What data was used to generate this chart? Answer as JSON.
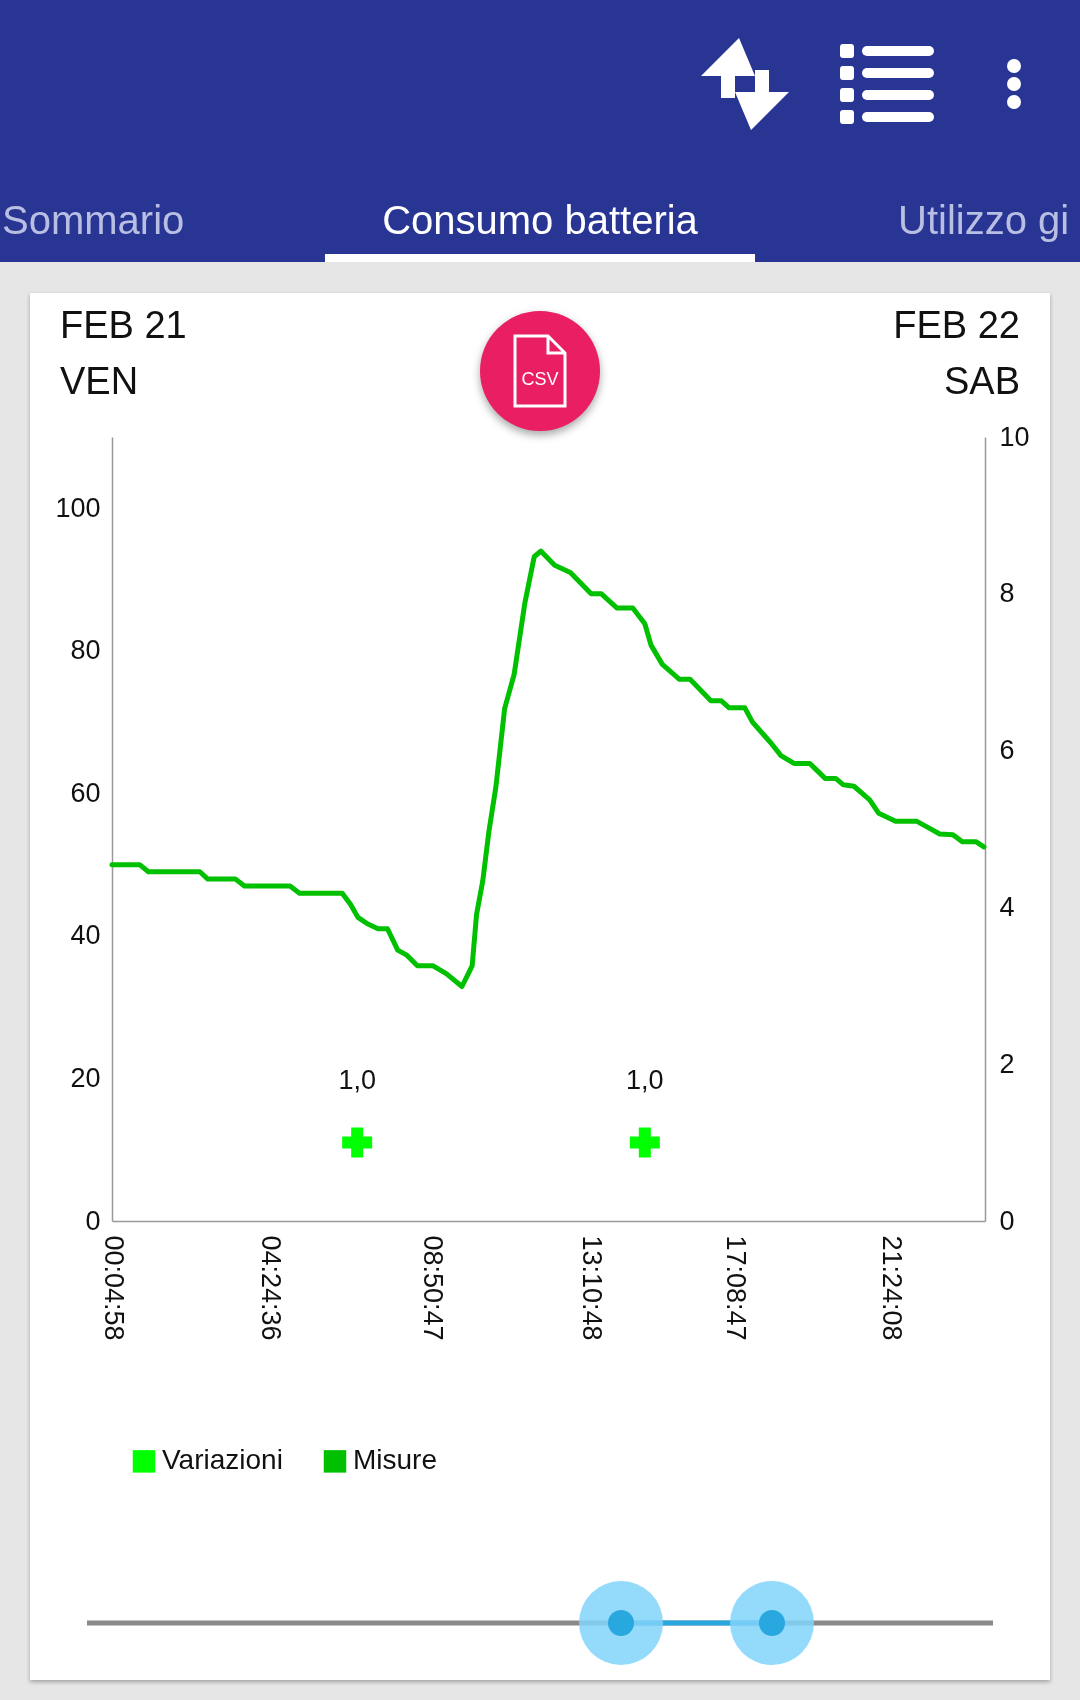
{
  "chart_data": {
    "type": "line",
    "title": "Consumo batteria",
    "annotations": [
      "FEB 21",
      "VEN",
      "FEB 22",
      "SAB",
      "Sommario",
      "Utilizzo gi",
      "CSV"
    ],
    "xlim": [
      0.0828,
      24.0
    ],
    "xticks": [
      {
        "value": 0.0828,
        "label": "00:04:58"
      },
      {
        "value": 4.41,
        "label": "04:24:36"
      },
      {
        "value": 8.8464,
        "label": "08:50:47"
      },
      {
        "value": 13.18,
        "label": "13:10:48"
      },
      {
        "value": 17.1464,
        "label": "17:08:47"
      },
      {
        "value": 21.4022,
        "label": "21:24:08"
      }
    ],
    "ylim": [
      0,
      110
    ],
    "yticks": [
      0,
      20,
      40,
      60,
      80,
      100
    ],
    "y2lim": [
      0,
      10
    ],
    "y2ticks": [
      0,
      2,
      4,
      6,
      8,
      10
    ],
    "grid": false,
    "legend": "bottom left",
    "series": [
      {
        "name": "Variazioni",
        "type": "scatter",
        "axis": "y2",
        "color": "#00ff00",
        "marker": "cross",
        "x": [
          6.8,
          14.68
        ],
        "values": [
          1.0,
          1.0
        ],
        "value_labels": [
          "1,0",
          "1,0"
        ]
      },
      {
        "name": "Misure",
        "type": "line",
        "color": "#00c000",
        "marker": "none",
        "line_style": "solid",
        "x": [
          0.0828,
          0.84,
          1.08,
          2.49,
          2.7,
          3.46,
          3.71,
          4.96,
          5.22,
          6.39,
          6.62,
          6.82,
          7.08,
          7.37,
          7.63,
          7.91,
          8.16,
          8.45,
          8.88,
          9.24,
          9.67,
          9.95,
          10.07,
          10.24,
          10.41,
          10.6,
          10.84,
          11.1,
          11.39,
          11.65,
          11.83,
          12.21,
          12.64,
          13.21,
          13.49,
          13.92,
          14.35,
          14.68,
          14.85,
          15.16,
          15.63,
          15.92,
          16.49,
          16.77,
          16.99,
          17.42,
          17.63,
          18.13,
          18.41,
          18.77,
          19.2,
          19.62,
          19.91,
          20.12,
          20.41,
          20.84,
          21.09,
          21.55,
          22.12,
          22.41,
          22.76,
          23.12,
          23.38,
          23.76,
          23.97
        ],
        "values": [
          50,
          50,
          49,
          49,
          48,
          48,
          47,
          47,
          46,
          46,
          44.4,
          42.6,
          41.7,
          41,
          41,
          38,
          37.3,
          35.8,
          35.8,
          34.7,
          32.9,
          35.8,
          43,
          47.7,
          54.7,
          60.9,
          71.9,
          76.7,
          86.6,
          93.2,
          94,
          92,
          91,
          88,
          88,
          86,
          86,
          83.8,
          80.8,
          78.1,
          76,
          76,
          73,
          73,
          72,
          72,
          70,
          67.1,
          65.3,
          64.2,
          64.2,
          62.1,
          62.1,
          61.2,
          61,
          59.1,
          57.2,
          56.1,
          56.1,
          55.3,
          54.3,
          54.2,
          53.2,
          53.2,
          52.5
        ]
      }
    ]
  }
}
